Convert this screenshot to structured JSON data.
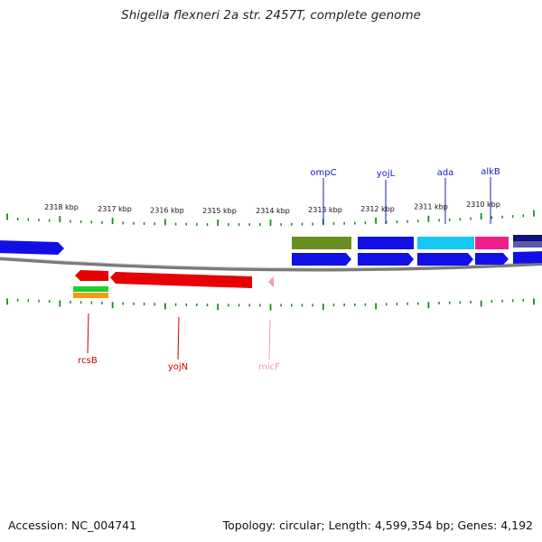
{
  "title": "Shigella flexneri 2a str. 2457T, complete genome",
  "footer": {
    "accession": "Accession: NC_004741",
    "summary": "Topology: circular; Length: 4,599,354 bp; Genes: 4,192"
  },
  "scale": {
    "unit": "kbp",
    "labels": [
      "2318 kbp",
      "2317 kbp",
      "2316 kbp",
      "2315 kbp",
      "2314 kbp",
      "2313 kbp",
      "2312 kbp",
      "2311 kbp",
      "2310 kbp"
    ]
  },
  "colors": {
    "backbone": "#888888",
    "tick": "#1a8a1a",
    "top_label": "#1a1acc",
    "bottom_label": "#cc0000",
    "micF": "#f29ac0"
  },
  "top_gene_labels": [
    "ompC",
    "yojL",
    "ada",
    "alkB"
  ],
  "bottom_gene_labels": [
    {
      "name": "rcsB",
      "color": "#cc0000"
    },
    {
      "name": "yojN",
      "color": "#cc0000"
    },
    {
      "name": "micF",
      "color": "#f29ac0"
    }
  ]
}
